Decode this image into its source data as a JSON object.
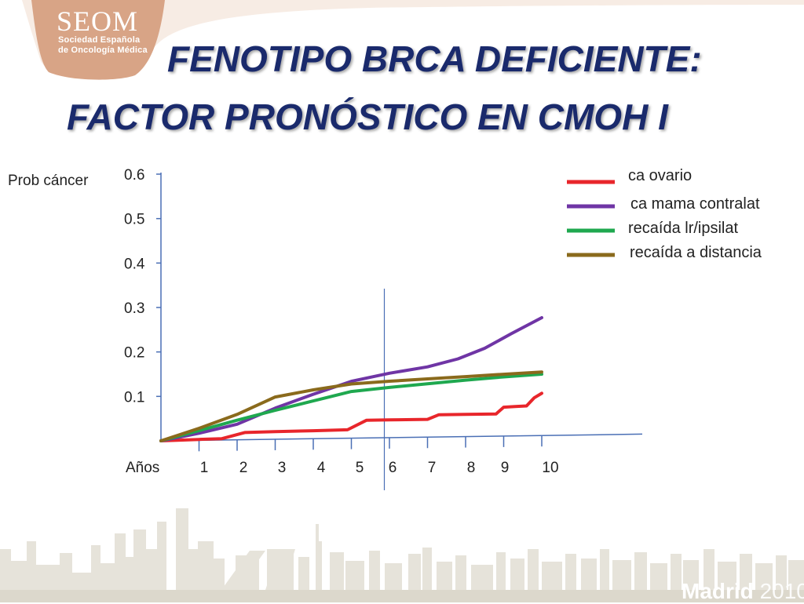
{
  "logo": {
    "name": "SEOM",
    "subtitle_line1": "Sociedad Española",
    "subtitle_line2": "de Oncología Médica"
  },
  "title": {
    "line1": "FENOTIPO BRCA DEFICIENTE:",
    "line2": "FACTOR PRONÓSTICO EN CMOH I"
  },
  "footer": {
    "city": "Madrid",
    "year": "2010"
  },
  "colors": {
    "title": "#1a2a6c",
    "axis": "#4a6fb5",
    "logo_bg": "#d9a98a",
    "skyline": "#e3e0d6"
  },
  "chart_data": {
    "type": "line",
    "ylabel": "Prob cáncer",
    "xlabel": "Años",
    "x_ticks": [
      "1",
      "2",
      "3",
      "4",
      "5",
      "6",
      "7",
      "8",
      "9",
      "10"
    ],
    "y_ticks": [
      "0.6",
      "0.5",
      "0.4",
      "0.3",
      "0.2",
      "0.1"
    ],
    "xlim": [
      0,
      10
    ],
    "ylim": [
      0,
      0.6
    ],
    "grid": false,
    "legend_position": "top-right",
    "reference_line_x": 5,
    "series": [
      {
        "name": "ca ovario",
        "color": "#e8262b",
        "points": [
          [
            0,
            0.0
          ],
          [
            1.0,
            0.002
          ],
          [
            1.6,
            0.003
          ],
          [
            2.2,
            0.016
          ],
          [
            3.0,
            0.017
          ],
          [
            4.0,
            0.018
          ],
          [
            4.9,
            0.019
          ],
          [
            5.4,
            0.04
          ],
          [
            6.0,
            0.04
          ],
          [
            7.0,
            0.04
          ],
          [
            7.3,
            0.05
          ],
          [
            8.0,
            0.05
          ],
          [
            8.8,
            0.05
          ],
          [
            9.0,
            0.065
          ],
          [
            9.3,
            0.066
          ],
          [
            9.6,
            0.067
          ],
          [
            9.8,
            0.085
          ],
          [
            10.0,
            0.095
          ]
        ]
      },
      {
        "name": "ca mama contralat",
        "color": "#6f35a5",
        "points": [
          [
            0,
            0.0
          ],
          [
            1.0,
            0.016
          ],
          [
            2.0,
            0.035
          ],
          [
            3.0,
            0.07
          ],
          [
            4.0,
            0.1
          ],
          [
            5.0,
            0.128
          ],
          [
            6.0,
            0.145
          ],
          [
            7.0,
            0.158
          ],
          [
            7.8,
            0.175
          ],
          [
            8.5,
            0.198
          ],
          [
            9.2,
            0.23
          ],
          [
            10.0,
            0.265
          ]
        ]
      },
      {
        "name": "recaída lr/ipsilat",
        "color": "#1fa84f",
        "points": [
          [
            0,
            0.0
          ],
          [
            1.0,
            0.022
          ],
          [
            2.0,
            0.044
          ],
          [
            3.0,
            0.065
          ],
          [
            4.0,
            0.085
          ],
          [
            5.0,
            0.105
          ],
          [
            6.0,
            0.113
          ],
          [
            7.0,
            0.12
          ],
          [
            8.0,
            0.127
          ],
          [
            9.0,
            0.133
          ],
          [
            10.0,
            0.138
          ]
        ]
      },
      {
        "name": "recaída a distancia",
        "color": "#8a6a1c",
        "points": [
          [
            0,
            0.0
          ],
          [
            1.0,
            0.027
          ],
          [
            2.0,
            0.057
          ],
          [
            3.0,
            0.095
          ],
          [
            4.0,
            0.11
          ],
          [
            5.0,
            0.122
          ],
          [
            6.0,
            0.127
          ],
          [
            7.0,
            0.131
          ],
          [
            8.0,
            0.135
          ],
          [
            9.0,
            0.139
          ],
          [
            10.0,
            0.143
          ]
        ]
      }
    ]
  }
}
